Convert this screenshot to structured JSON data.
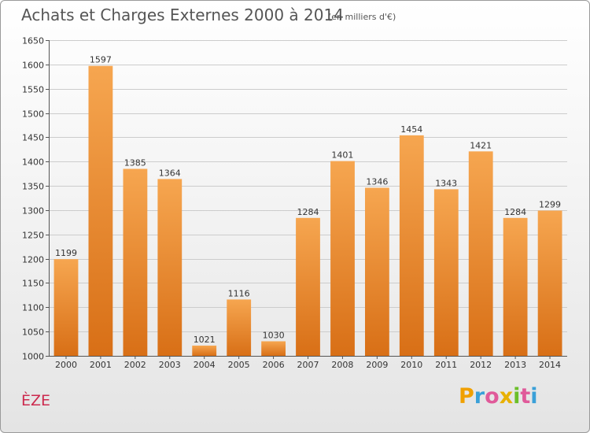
{
  "title": "Achats et Charges Externes 2000 à 2014",
  "subtitle": "(en milliers d'€)",
  "place_name": "ÈZE",
  "logo": {
    "letters": [
      "P",
      "r",
      "o",
      "x",
      "i",
      "t",
      "i"
    ],
    "colors": [
      "#f0a000",
      "#3aa0d8",
      "#e05a9a",
      "#e8b000",
      "#6cbf2a",
      "#e05a9a",
      "#3aa0d8"
    ]
  },
  "colors": {
    "bar_light": "#f6a650",
    "bar_dark": "#d86f16",
    "grid": "#cccccc",
    "title_text": "#555555",
    "place_text": "#cc2a4e"
  },
  "chart_data": {
    "type": "bar",
    "categories": [
      "2000",
      "2001",
      "2002",
      "2003",
      "2004",
      "2005",
      "2006",
      "2007",
      "2008",
      "2009",
      "2010",
      "2011",
      "2012",
      "2013",
      "2014"
    ],
    "values": [
      1199,
      1597,
      1385,
      1364,
      1021,
      1116,
      1030,
      1284,
      1401,
      1346,
      1454,
      1343,
      1421,
      1284,
      1299
    ],
    "ylim": [
      1000,
      1650
    ],
    "yticks": [
      1000,
      1050,
      1100,
      1150,
      1200,
      1250,
      1300,
      1350,
      1400,
      1450,
      1500,
      1550,
      1600,
      1650
    ],
    "grid": true
  }
}
